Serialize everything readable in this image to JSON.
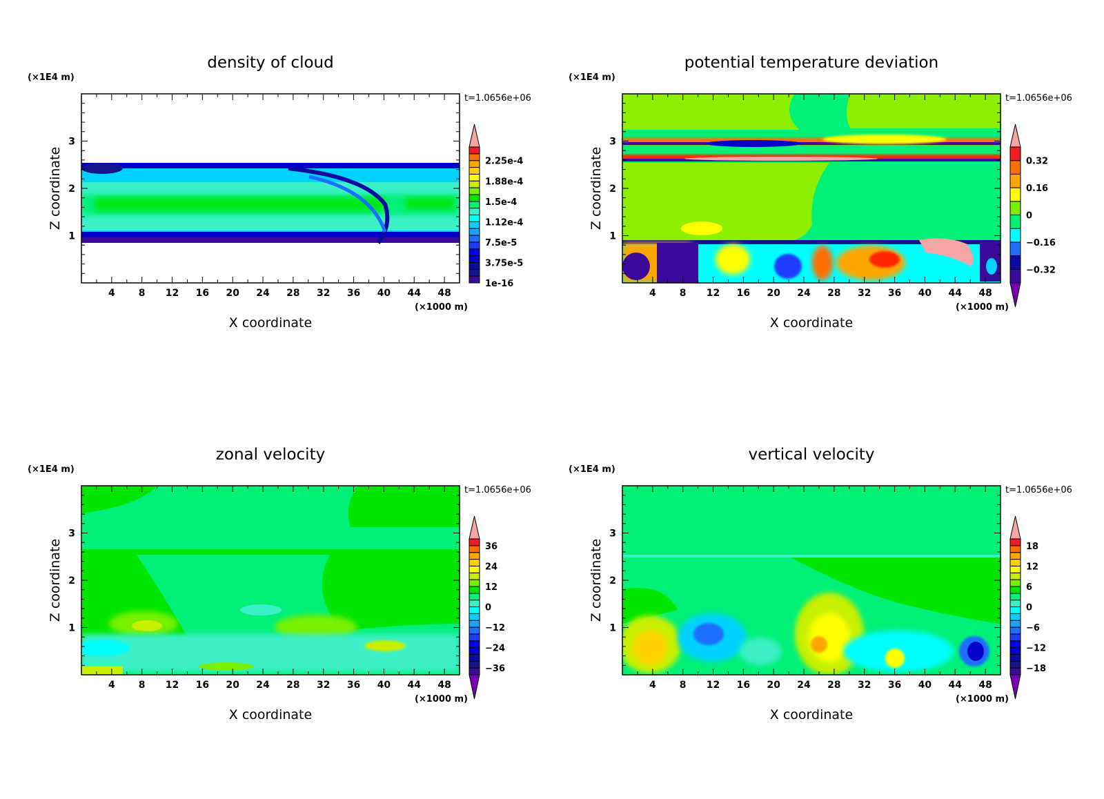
{
  "chart_data": [
    {
      "type": "heatmap",
      "title": "density of cloud",
      "xlabel": "X coordinate",
      "ylabel": "Z coordinate",
      "x_unit": "(×1000 m)",
      "y_unit": "(×1E4 m)",
      "time_label": "t=1.0656e+06",
      "xlim": [
        0,
        50
      ],
      "ylim": [
        0,
        4
      ],
      "xticks": [
        "4",
        "8",
        "12",
        "16",
        "20",
        "24",
        "28",
        "32",
        "36",
        "40",
        "44",
        "48"
      ],
      "yticks": [
        "1",
        "2",
        "3"
      ],
      "colorbar": {
        "min": 1e-16,
        "max": 0.00025,
        "levels": 20,
        "extend": "max",
        "labels": [
          "2.25e-4",
          "1.88e-4",
          "1.5e-4",
          "1.12e-4",
          "7.5e-5",
          "3.75e-5",
          "1e-16"
        ],
        "label_values": [
          0.000225,
          0.0001875,
          0.00015,
          0.0001125,
          7.5e-05,
          3.75e-05,
          0
        ]
      },
      "description": "cloud layer between z≈0.9 and 2.5 (x1E4 m)"
    },
    {
      "type": "heatmap",
      "title": "potential temperature deviation",
      "xlabel": "X coordinate",
      "ylabel": "Z coordinate",
      "x_unit": "(×1000 m)",
      "y_unit": "(×1E4 m)",
      "time_label": "t=1.0656e+06",
      "xlim": [
        0,
        50
      ],
      "ylim": [
        0,
        4
      ],
      "xticks": [
        "4",
        "8",
        "12",
        "16",
        "20",
        "24",
        "28",
        "32",
        "36",
        "40",
        "44",
        "48"
      ],
      "yticks": [
        "1",
        "2",
        "3"
      ],
      "colorbar": {
        "min": -0.4,
        "max": 0.4,
        "levels": 10,
        "extend": "both",
        "labels": [
          "0.32",
          "0.16",
          "0",
          "−0.16",
          "−0.32"
        ],
        "label_values": [
          0.32,
          0.16,
          0,
          -0.16,
          -0.32
        ]
      }
    },
    {
      "type": "heatmap",
      "title": "zonal velocity",
      "xlabel": "X coordinate",
      "ylabel": "Z coordinate",
      "x_unit": "(×1000 m)",
      "y_unit": "(×1E4 m)",
      "time_label": "t=1.0656e+06",
      "xlim": [
        0,
        50
      ],
      "ylim": [
        0,
        4
      ],
      "xticks": [
        "4",
        "8",
        "12",
        "16",
        "20",
        "24",
        "28",
        "32",
        "36",
        "40",
        "44",
        "48"
      ],
      "yticks": [
        "1",
        "2",
        "3"
      ],
      "colorbar": {
        "min": -40,
        "max": 40,
        "levels": 20,
        "extend": "both",
        "labels": [
          "36",
          "24",
          "12",
          "0",
          "−12",
          "−24",
          "−36"
        ],
        "label_values": [
          36,
          24,
          12,
          0,
          -12,
          -24,
          -36
        ]
      }
    },
    {
      "type": "heatmap",
      "title": "vertical velocity",
      "xlabel": "X coordinate",
      "ylabel": "Z coordinate",
      "x_unit": "(×1000 m)",
      "y_unit": "(×1E4 m)",
      "time_label": "t=1.0656e+06",
      "xlim": [
        0,
        50
      ],
      "ylim": [
        0,
        4
      ],
      "xticks": [
        "4",
        "8",
        "12",
        "16",
        "20",
        "24",
        "28",
        "32",
        "36",
        "40",
        "44",
        "48"
      ],
      "yticks": [
        "1",
        "2",
        "3"
      ],
      "colorbar": {
        "min": -20,
        "max": 20,
        "levels": 20,
        "extend": "both",
        "labels": [
          "18",
          "12",
          "6",
          "0",
          "−6",
          "−12",
          "−18"
        ],
        "label_values": [
          18,
          12,
          6,
          0,
          -6,
          -12,
          -18
        ]
      }
    }
  ],
  "colors": {
    "palette": [
      "#3c0a9a",
      "#14148c",
      "#0a0aa0",
      "#0000c8",
      "#0000f0",
      "#1e3cff",
      "#1e6eff",
      "#1ea0ff",
      "#00d2ff",
      "#00ffff",
      "#3cf0c8",
      "#00f078",
      "#00e600",
      "#78f000",
      "#c8f000",
      "#ffff00",
      "#ffd200",
      "#ffa500",
      "#ff6e00",
      "#f01e1e"
    ],
    "over": "#f5a5a5",
    "under": "#7800b4"
  }
}
